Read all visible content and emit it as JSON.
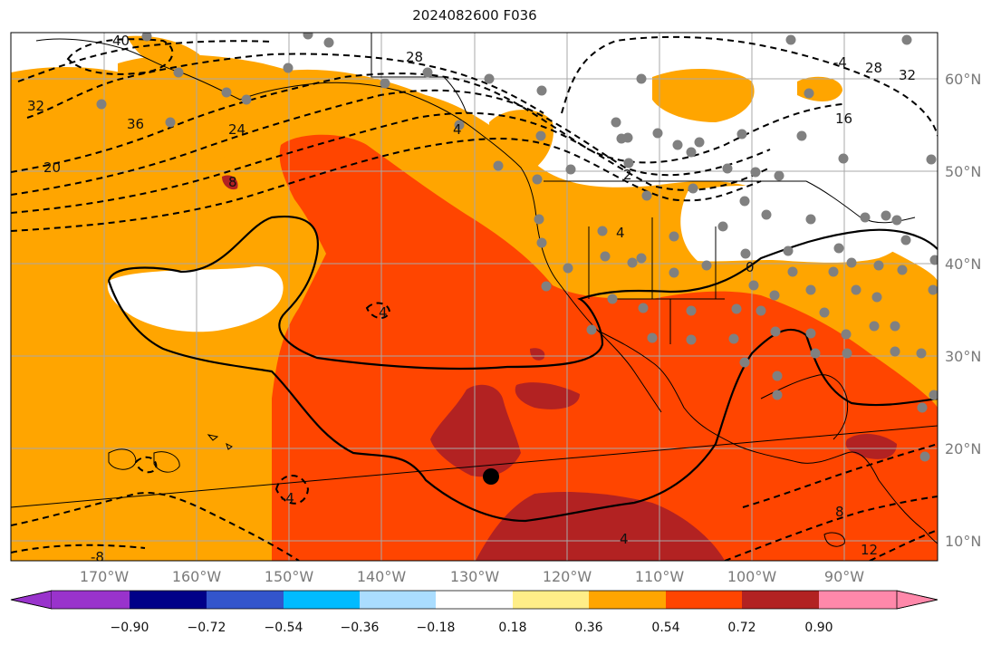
{
  "title": "2024082600 F036",
  "longitude_labels": [
    "170°W",
    "160°W",
    "150°W",
    "140°W",
    "130°W",
    "120°W",
    "110°W",
    "100°W",
    "90°W"
  ],
  "latitude_labels": [
    "60°N",
    "50°N",
    "40°N",
    "30°N",
    "20°N",
    "10°N"
  ],
  "contour_labels": [
    "40",
    "28",
    "32",
    "24",
    "36",
    "20",
    "8",
    "4",
    "4",
    "4",
    "16",
    "-4",
    "28",
    "32",
    "2",
    "4",
    "0",
    "8",
    "12",
    "-8",
    "-4"
  ],
  "colorbar": {
    "tick_labels": [
      "−0.90",
      "−0.72",
      "−0.54",
      "−0.36",
      "−0.18",
      "0.18",
      "0.36",
      "0.54",
      "0.72",
      "0.90"
    ],
    "colors": [
      "#9933cc",
      "#000088",
      "#3355cc",
      "#00bbff",
      "#aaddff",
      "#ffffff",
      "#ffee88",
      "#ffa500",
      "#ff4500",
      "#b22222",
      "#ff88aa"
    ]
  },
  "map_colors": {
    "land_line": "#000000",
    "grid": "#a8a8a8",
    "stations": "#808080",
    "marker": "#000000"
  }
}
